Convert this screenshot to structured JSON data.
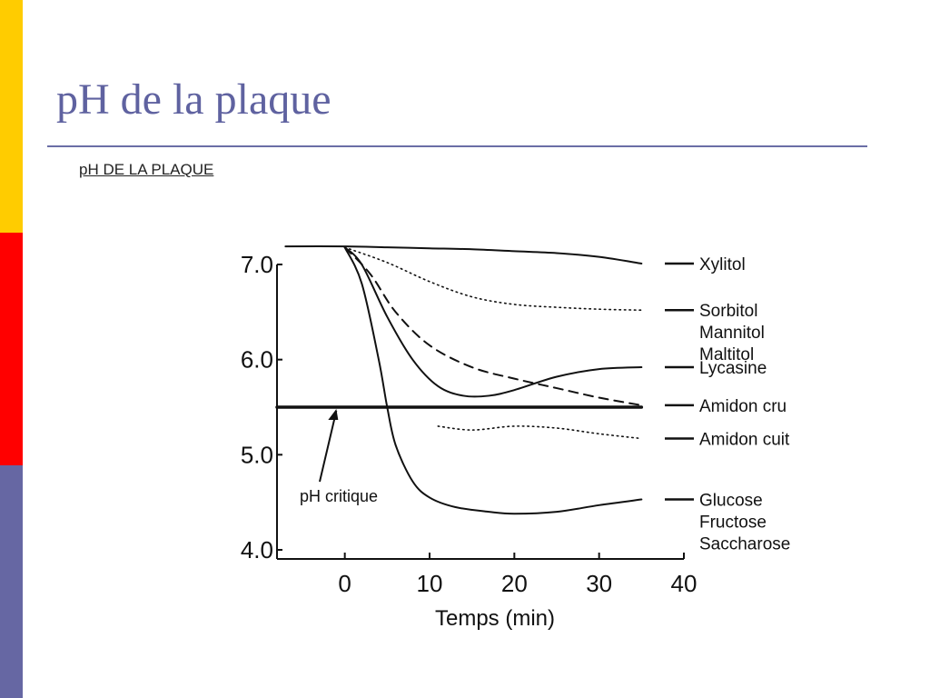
{
  "slide": {
    "title": "pH de la plaque",
    "stripe_colors": [
      "#ffcc00",
      "#ff0000",
      "#6667a3"
    ]
  },
  "figure": {
    "heading": "pH DE LA PLAQUE"
  },
  "chart_data": {
    "type": "line",
    "xlabel": "Temps (min)",
    "ylabel": "",
    "xlim": [
      -8,
      40
    ],
    "ylim": [
      4.0,
      7.0
    ],
    "x_ticks": [
      0,
      10,
      20,
      30,
      40
    ],
    "y_ticks": [
      7.0,
      6.0,
      5.0,
      4.0
    ],
    "x_tick_labels": [
      "0",
      "10",
      "20",
      "30",
      "40"
    ],
    "y_tick_labels": [
      "7.0",
      "6.0",
      "5.0",
      "4.0"
    ],
    "series": [
      {
        "name": "Xylitol",
        "style": "solid",
        "x": [
          -7,
          0,
          5,
          10,
          15,
          20,
          25,
          30,
          35
        ],
        "y": [
          7.19,
          7.19,
          7.18,
          7.17,
          7.16,
          7.14,
          7.12,
          7.08,
          7.01
        ]
      },
      {
        "name": "Sorbitol Mannitol Maltitol",
        "label_lines": [
          "Sorbitol",
          "Mannitol",
          "Maltitol"
        ],
        "style": "dotted",
        "x": [
          0,
          5,
          10,
          15,
          20,
          25,
          30,
          35
        ],
        "y": [
          7.18,
          7.02,
          6.82,
          6.66,
          6.58,
          6.55,
          6.53,
          6.52
        ]
      },
      {
        "name": "Lycasine",
        "style": "solid",
        "x": [
          0,
          2,
          5,
          8,
          11,
          14,
          17,
          20,
          25,
          30,
          35
        ],
        "y": [
          7.18,
          7.0,
          6.45,
          6.0,
          5.72,
          5.62,
          5.62,
          5.68,
          5.82,
          5.9,
          5.92
        ]
      },
      {
        "name": "Amidon cru",
        "style": "dashed",
        "x": [
          0,
          3,
          6,
          10,
          15,
          20,
          25,
          30,
          35
        ],
        "y": [
          7.18,
          6.9,
          6.5,
          6.15,
          5.92,
          5.8,
          5.7,
          5.6,
          5.52
        ]
      },
      {
        "name": "Amidon cuit",
        "style": "dotted",
        "x": [
          11,
          15,
          20,
          25,
          30,
          35
        ],
        "y": [
          5.3,
          5.26,
          5.3,
          5.28,
          5.22,
          5.17
        ]
      },
      {
        "name": "Glucose Fructose Saccharose",
        "label_lines": [
          "Glucose",
          "Fructose",
          "Saccharose"
        ],
        "style": "solid",
        "x": [
          0,
          2,
          4,
          5,
          6,
          8,
          10,
          13,
          17,
          20,
          25,
          30,
          35
        ],
        "y": [
          7.18,
          6.8,
          6.0,
          5.5,
          5.1,
          4.72,
          4.55,
          4.45,
          4.4,
          4.38,
          4.4,
          4.47,
          4.53
        ]
      },
      {
        "name": "pH critique",
        "style": "thick",
        "x": [
          -8,
          35
        ],
        "y": [
          5.5,
          5.5
        ]
      }
    ],
    "annotations": [
      {
        "text": "pH critique",
        "points_to": {
          "x": -1,
          "y": 5.5
        }
      }
    ],
    "legend": "right-end labels",
    "grid": false
  }
}
